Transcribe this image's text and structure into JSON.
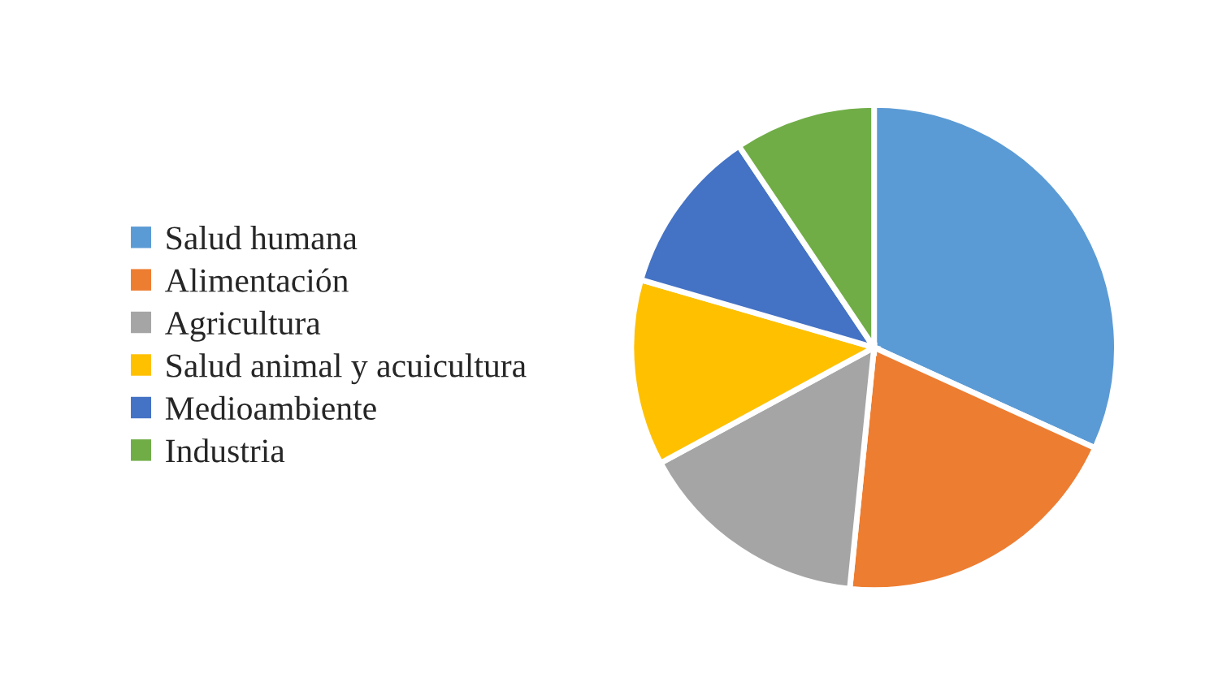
{
  "chart_data": {
    "type": "pie",
    "categories": [
      "Salud humana",
      "Alimentación",
      "Agricultura",
      "Salud animal y acuicultura",
      "Medioambiente",
      "Industria"
    ],
    "values": [
      31.8,
      19.8,
      15.5,
      12.4,
      11.1,
      9.4
    ],
    "colors": [
      "#5b9bd5",
      "#ed7d31",
      "#a5a5a5",
      "#ffc000",
      "#4472c4",
      "#70ad47"
    ],
    "legend": "left"
  }
}
